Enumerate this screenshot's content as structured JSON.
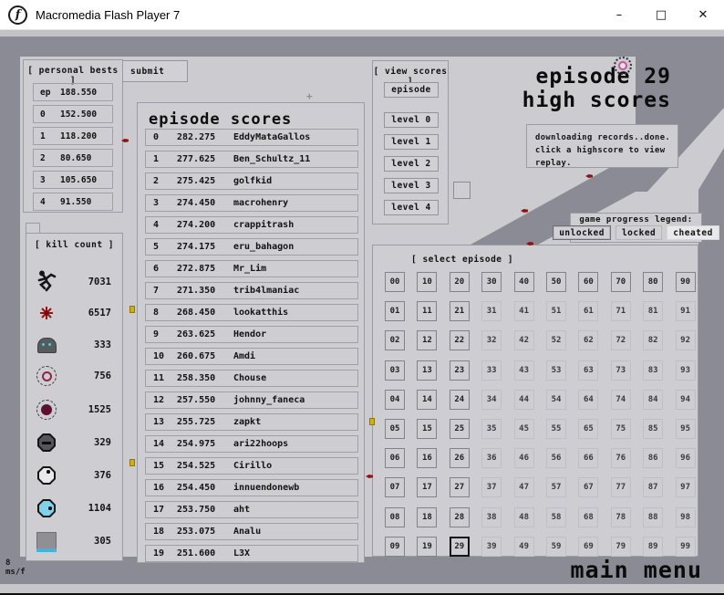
{
  "window": {
    "title": "Macromedia Flash Player 7",
    "minimize": "–",
    "maximize": "□",
    "close": "✕"
  },
  "personal_bests": {
    "title": "[ personal bests ]",
    "rows": [
      {
        "label": "ep",
        "value": "188.550"
      },
      {
        "label": "0",
        "value": "152.500"
      },
      {
        "label": "1",
        "value": "118.200"
      },
      {
        "label": "2",
        "value": "80.650"
      },
      {
        "label": "3",
        "value": "105.650"
      },
      {
        "label": "4",
        "value": "91.550"
      }
    ]
  },
  "submit_label": "submit",
  "episode_scores": {
    "title": "episode scores",
    "rows": [
      {
        "rank": "0",
        "score": "282.275",
        "name": "EddyMataGallos"
      },
      {
        "rank": "1",
        "score": "277.625",
        "name": "Ben_Schultz_11"
      },
      {
        "rank": "2",
        "score": "275.425",
        "name": "golfkid"
      },
      {
        "rank": "3",
        "score": "274.450",
        "name": "macrohenry"
      },
      {
        "rank": "4",
        "score": "274.200",
        "name": "crappitrash"
      },
      {
        "rank": "5",
        "score": "274.175",
        "name": "eru_bahagon"
      },
      {
        "rank": "6",
        "score": "272.875",
        "name": "Mr_Lim"
      },
      {
        "rank": "7",
        "score": "271.350",
        "name": "trib4lmaniac"
      },
      {
        "rank": "8",
        "score": "268.450",
        "name": "lookatthis"
      },
      {
        "rank": "9",
        "score": "263.625",
        "name": "Hendor"
      },
      {
        "rank": "10",
        "score": "260.675",
        "name": "Amdi"
      },
      {
        "rank": "11",
        "score": "258.350",
        "name": "Chouse"
      },
      {
        "rank": "12",
        "score": "257.550",
        "name": "johnny_faneca"
      },
      {
        "rank": "13",
        "score": "255.725",
        "name": "zapkt"
      },
      {
        "rank": "14",
        "score": "254.975",
        "name": "ari22hoops"
      },
      {
        "rank": "15",
        "score": "254.525",
        "name": "Cirillo"
      },
      {
        "rank": "16",
        "score": "254.450",
        "name": "innuendonewb"
      },
      {
        "rank": "17",
        "score": "253.750",
        "name": "aht"
      },
      {
        "rank": "18",
        "score": "253.075",
        "name": "Analu"
      },
      {
        "rank": "19",
        "score": "251.600",
        "name": "L3X"
      }
    ]
  },
  "view_scores": {
    "title": "[ view scores ]",
    "buttons": [
      "episode",
      "level 0",
      "level 1",
      "level 2",
      "level 3",
      "level 4"
    ]
  },
  "highscores_header": {
    "line1": "episode 29",
    "line2": "high scores"
  },
  "status_box": {
    "line1": "downloading records..done.",
    "line2": "click a highscore to view replay."
  },
  "legend": {
    "title": "game progress legend:",
    "chips": [
      {
        "label": "unlocked",
        "state": "unlocked"
      },
      {
        "label": "locked",
        "state": "locked"
      },
      {
        "label": "cheated",
        "state": "cheated"
      }
    ]
  },
  "episode_select": {
    "title": "[ select episode ]",
    "cells": [
      {
        "l": "00",
        "s": "u"
      },
      {
        "l": "10",
        "s": "u"
      },
      {
        "l": "20",
        "s": "u"
      },
      {
        "l": "30",
        "s": "u"
      },
      {
        "l": "40",
        "s": "u"
      },
      {
        "l": "50",
        "s": "u"
      },
      {
        "l": "60",
        "s": "u"
      },
      {
        "l": "70",
        "s": "u"
      },
      {
        "l": "80",
        "s": "u"
      },
      {
        "l": "90",
        "s": "u"
      },
      {
        "l": "01",
        "s": "u"
      },
      {
        "l": "11",
        "s": "u"
      },
      {
        "l": "21",
        "s": "u"
      },
      {
        "l": "31",
        "s": "l"
      },
      {
        "l": "41",
        "s": "l"
      },
      {
        "l": "51",
        "s": "l"
      },
      {
        "l": "61",
        "s": "l"
      },
      {
        "l": "71",
        "s": "l"
      },
      {
        "l": "81",
        "s": "l"
      },
      {
        "l": "91",
        "s": "l"
      },
      {
        "l": "02",
        "s": "u"
      },
      {
        "l": "12",
        "s": "u"
      },
      {
        "l": "22",
        "s": "u"
      },
      {
        "l": "32",
        "s": "l"
      },
      {
        "l": "42",
        "s": "l"
      },
      {
        "l": "52",
        "s": "l"
      },
      {
        "l": "62",
        "s": "l"
      },
      {
        "l": "72",
        "s": "l"
      },
      {
        "l": "82",
        "s": "l"
      },
      {
        "l": "92",
        "s": "l"
      },
      {
        "l": "03",
        "s": "u"
      },
      {
        "l": "13",
        "s": "u"
      },
      {
        "l": "23",
        "s": "u"
      },
      {
        "l": "33",
        "s": "l"
      },
      {
        "l": "43",
        "s": "l"
      },
      {
        "l": "53",
        "s": "l"
      },
      {
        "l": "63",
        "s": "l"
      },
      {
        "l": "73",
        "s": "l"
      },
      {
        "l": "83",
        "s": "l"
      },
      {
        "l": "93",
        "s": "l"
      },
      {
        "l": "04",
        "s": "u"
      },
      {
        "l": "14",
        "s": "u"
      },
      {
        "l": "24",
        "s": "u"
      },
      {
        "l": "34",
        "s": "l"
      },
      {
        "l": "44",
        "s": "l"
      },
      {
        "l": "54",
        "s": "l"
      },
      {
        "l": "64",
        "s": "l"
      },
      {
        "l": "74",
        "s": "l"
      },
      {
        "l": "84",
        "s": "l"
      },
      {
        "l": "94",
        "s": "l"
      },
      {
        "l": "05",
        "s": "u"
      },
      {
        "l": "15",
        "s": "u"
      },
      {
        "l": "25",
        "s": "u"
      },
      {
        "l": "35",
        "s": "l"
      },
      {
        "l": "45",
        "s": "l"
      },
      {
        "l": "55",
        "s": "l"
      },
      {
        "l": "65",
        "s": "l"
      },
      {
        "l": "75",
        "s": "l"
      },
      {
        "l": "85",
        "s": "l"
      },
      {
        "l": "95",
        "s": "l"
      },
      {
        "l": "06",
        "s": "u"
      },
      {
        "l": "16",
        "s": "u"
      },
      {
        "l": "26",
        "s": "u"
      },
      {
        "l": "36",
        "s": "l"
      },
      {
        "l": "46",
        "s": "l"
      },
      {
        "l": "56",
        "s": "l"
      },
      {
        "l": "66",
        "s": "l"
      },
      {
        "l": "76",
        "s": "l"
      },
      {
        "l": "86",
        "s": "l"
      },
      {
        "l": "96",
        "s": "l"
      },
      {
        "l": "07",
        "s": "u"
      },
      {
        "l": "17",
        "s": "u"
      },
      {
        "l": "27",
        "s": "u"
      },
      {
        "l": "37",
        "s": "l"
      },
      {
        "l": "47",
        "s": "l"
      },
      {
        "l": "57",
        "s": "l"
      },
      {
        "l": "67",
        "s": "l"
      },
      {
        "l": "77",
        "s": "l"
      },
      {
        "l": "87",
        "s": "l"
      },
      {
        "l": "97",
        "s": "l"
      },
      {
        "l": "08",
        "s": "u"
      },
      {
        "l": "18",
        "s": "u"
      },
      {
        "l": "28",
        "s": "u"
      },
      {
        "l": "38",
        "s": "l"
      },
      {
        "l": "48",
        "s": "l"
      },
      {
        "l": "58",
        "s": "l"
      },
      {
        "l": "68",
        "s": "l"
      },
      {
        "l": "78",
        "s": "l"
      },
      {
        "l": "88",
        "s": "l"
      },
      {
        "l": "98",
        "s": "l"
      },
      {
        "l": "09",
        "s": "u"
      },
      {
        "l": "19",
        "s": "u"
      },
      {
        "l": "29",
        "s": "x"
      },
      {
        "l": "39",
        "s": "l"
      },
      {
        "l": "49",
        "s": "l"
      },
      {
        "l": "59",
        "s": "l"
      },
      {
        "l": "69",
        "s": "l"
      },
      {
        "l": "79",
        "s": "l"
      },
      {
        "l": "89",
        "s": "l"
      },
      {
        "l": "99",
        "s": "l"
      }
    ]
  },
  "kill_count": {
    "title": "[ kill count ]",
    "items": [
      {
        "icon": "ninja-icon",
        "count": "7031"
      },
      {
        "icon": "mine-icon",
        "count": "6517"
      },
      {
        "icon": "drone-icon",
        "count": "333"
      },
      {
        "icon": "seeker-ring-icon",
        "count": "756"
      },
      {
        "icon": "seeker-filled-icon",
        "count": "1525"
      },
      {
        "icon": "turret-dark-icon",
        "count": "329"
      },
      {
        "icon": "turret-white-icon",
        "count": "376"
      },
      {
        "icon": "turret-cyan-icon",
        "count": "1104"
      },
      {
        "icon": "thwump-icon",
        "count": "305"
      }
    ]
  },
  "footer": {
    "fps": "8",
    "fps_unit": "ms/f",
    "main_menu": "main menu"
  },
  "colors": {
    "base_light": "#cbcbd0",
    "base_dark": "#8b8b96",
    "accent_red": "#8e1414",
    "accent_gold": "#cfae17",
    "accent_cyan": "#3fb4de",
    "orb_pink": "#c05a9a"
  }
}
